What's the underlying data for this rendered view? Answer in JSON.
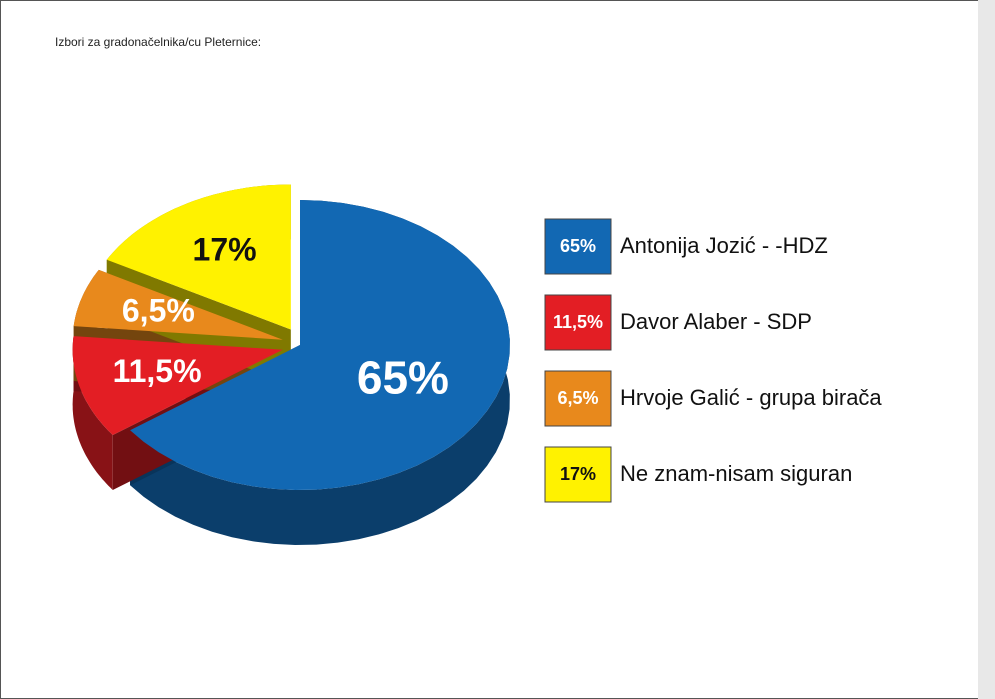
{
  "chart_data": {
    "type": "pie",
    "title": "Izbori za gradonačelnika/cu Pleternice:",
    "categories": [
      "Antonija Jozić - -HDZ",
      "Davor Alaber - SDP",
      "Hrvoje Galić - grupa birača",
      "Ne znam-nisam siguran"
    ],
    "values": [
      65,
      11.5,
      6.5,
      17
    ],
    "value_labels": [
      "65%",
      "11,5%",
      "6,5%",
      "17%"
    ],
    "colors": [
      "#1268b3",
      "#e31e24",
      "#e8891c",
      "#fff200"
    ],
    "legend": "right"
  }
}
